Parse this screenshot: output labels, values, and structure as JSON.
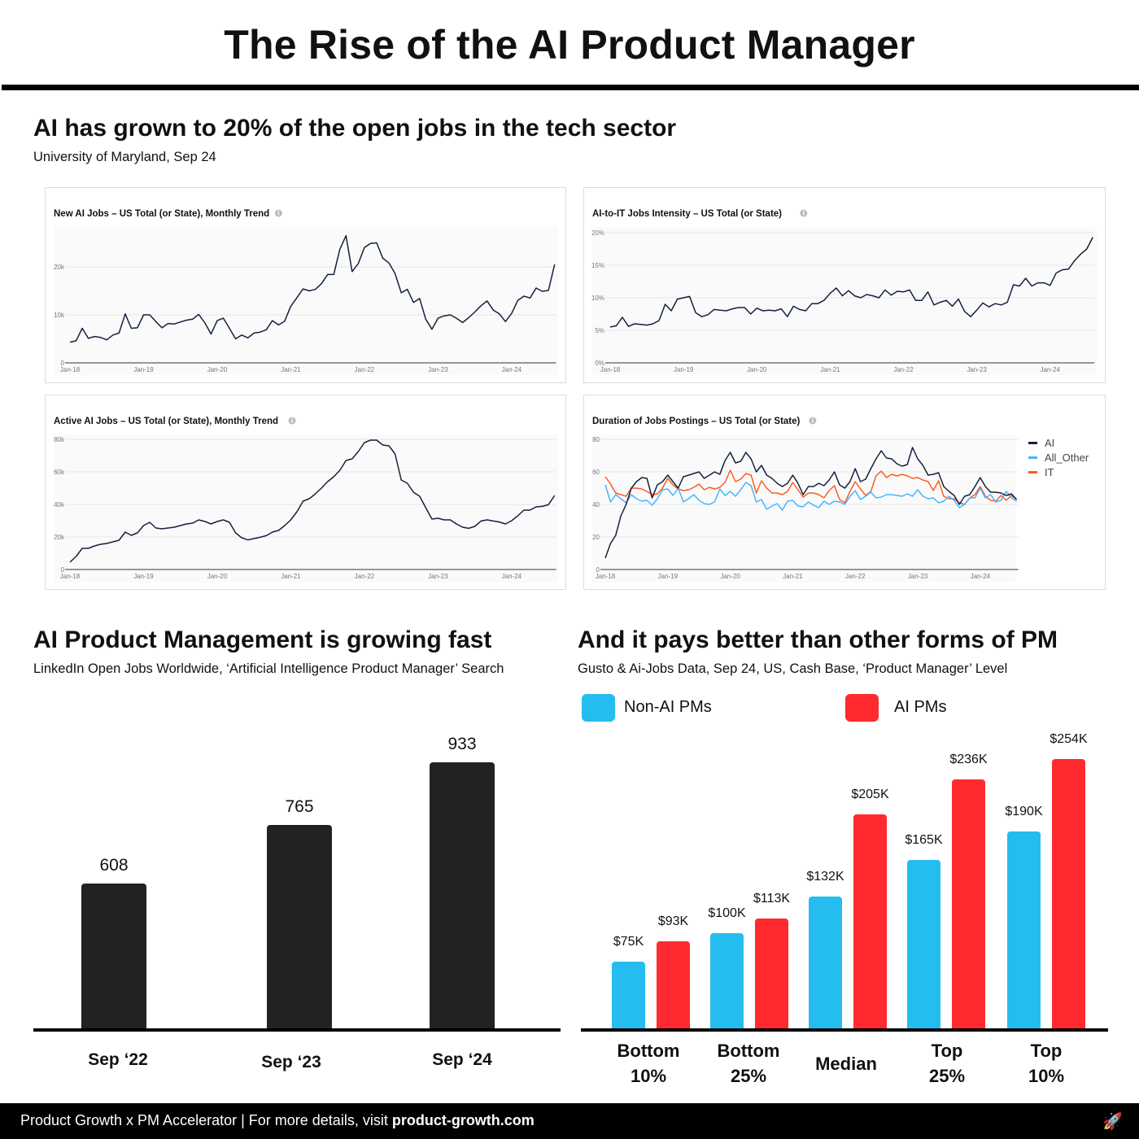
{
  "title": "The Rise of the AI Product Manager",
  "section1": {
    "heading": "AI has grown to 20% of the open jobs in the tech sector",
    "source": "University of Maryland, Sep 24"
  },
  "section2": {
    "heading": "AI Product Management is growing fast",
    "source": "LinkedIn Open Jobs Worldwide, ‘Artificial Intelligence Product Manager’ Search"
  },
  "section3": {
    "heading": "And it pays better than other forms of PM",
    "source": "Gusto & Ai-Jobs Data, Sep 24, US, Cash Base, ‘Product Manager’ Level"
  },
  "footer": {
    "text": "Product Growth x PM Accelerator  |  For more details, visit ",
    "link": "product-growth.com",
    "icon": "rocket-icon"
  },
  "colors": {
    "line": "#13213f",
    "non_ai": "#25bdf0",
    "ai": "#ff2a2f",
    "bar": "#222222",
    "all_other": "#44b6ff",
    "it": "#ff5a1f"
  },
  "chart_data": [
    {
      "type": "line",
      "title": "New AI Jobs – US Total (or State), Monthly Trend",
      "info_icon": "info-icon",
      "frequency": "monthly",
      "x_range": [
        "Jan-18",
        "Aug-24"
      ],
      "x_ticks": [
        "Jan-18",
        "Jan-19",
        "Jan-20",
        "Jan-21",
        "Jan-22",
        "Jan-23",
        "Jan-24"
      ],
      "y_ticks": [
        0,
        10000,
        20000
      ],
      "y_tick_labels": [
        "0",
        "10k",
        "20k"
      ],
      "grid": true,
      "series": [
        {
          "color": "#13213f",
          "values": [
            4300,
            4600,
            7200,
            5100,
            5500,
            5300,
            4800,
            5800,
            6200,
            10200,
            7200,
            7300,
            10000,
            10000,
            8600,
            7300,
            8200,
            8100,
            8500,
            8900,
            9100,
            10100,
            8300,
            6000,
            8800,
            9300,
            7200,
            5000,
            5800,
            5200,
            6200,
            6400,
            6900,
            8800,
            7900,
            8700,
            11800,
            13600,
            15400,
            15000,
            15300,
            16500,
            18400,
            18400,
            23700,
            26500,
            19000,
            20700,
            24000,
            24900,
            25000,
            21800,
            20800,
            18600,
            14600,
            15300,
            12600,
            13400,
            9100,
            7000,
            9300,
            9800,
            10000,
            9300,
            8400,
            9400,
            10600,
            11900,
            12900,
            11000,
            10200,
            8600,
            10300,
            13000,
            13900,
            13500,
            15600,
            14900,
            15100,
            20500
          ]
        }
      ]
    },
    {
      "type": "line",
      "title": "AI-to-IT Jobs Intensity – US Total (or State)",
      "info_icon": "info-icon",
      "frequency": "monthly",
      "x_range": [
        "Jan-18",
        "Aug-24"
      ],
      "x_ticks": [
        "Jan-18",
        "Jan-19",
        "Jan-20",
        "Jan-21",
        "Jan-22",
        "Jan-23",
        "Jan-24"
      ],
      "y_ticks": [
        0,
        5,
        10,
        15,
        20
      ],
      "y_tick_labels": [
        "0%",
        "5%",
        "10%",
        "15%",
        "20%"
      ],
      "grid": true,
      "series": [
        {
          "color": "#13213f",
          "values": [
            5.5,
            5.7,
            7.0,
            5.6,
            6.0,
            5.9,
            5.8,
            6.0,
            6.5,
            9.0,
            8.0,
            9.8,
            10.0,
            10.2,
            7.7,
            7.1,
            7.4,
            8.2,
            8.1,
            8.0,
            8.3,
            8.5,
            8.5,
            7.5,
            8.4,
            8.0,
            8.1,
            8.0,
            8.3,
            7.1,
            8.7,
            8.2,
            8.0,
            9.1,
            9.1,
            9.6,
            10.7,
            11.5,
            10.3,
            11.1,
            10.3,
            10.0,
            10.5,
            10.3,
            10.0,
            11.2,
            10.4,
            11.0,
            10.9,
            11.2,
            9.6,
            9.6,
            10.9,
            8.9,
            9.3,
            9.6,
            8.7,
            9.8,
            7.9,
            7.1,
            8.1,
            9.2,
            8.6,
            9.1,
            8.9,
            9.3,
            12.0,
            11.8,
            13.0,
            11.8,
            12.3,
            12.3,
            11.9,
            13.8,
            14.3,
            14.4,
            15.7,
            16.7,
            17.5,
            19.3
          ]
        }
      ]
    },
    {
      "type": "line",
      "title": "Active AI Jobs – US Total (or State), Monthly Trend",
      "info_icon": "info-icon",
      "frequency": "monthly",
      "x_range": [
        "Jan-18",
        "Aug-24"
      ],
      "x_ticks": [
        "Jan-18",
        "Jan-19",
        "Jan-20",
        "Jan-21",
        "Jan-22",
        "Jan-23",
        "Jan-24"
      ],
      "y_ticks": [
        0,
        20000,
        40000,
        60000,
        80000
      ],
      "y_tick_labels": [
        "0",
        "20k",
        "40k",
        "60k",
        "80k"
      ],
      "grid": true,
      "series": [
        {
          "color": "#13213f",
          "values": [
            4500,
            8000,
            13000,
            13000,
            14500,
            15500,
            16000,
            17000,
            18000,
            23000,
            21000,
            22500,
            27000,
            29000,
            25500,
            25000,
            25500,
            26000,
            27000,
            28000,
            28500,
            30500,
            29500,
            28000,
            29500,
            30500,
            29000,
            22500,
            19500,
            18200,
            19000,
            19800,
            20800,
            23000,
            24000,
            27000,
            30500,
            35500,
            42000,
            43500,
            46500,
            50000,
            54000,
            57000,
            61000,
            67000,
            68000,
            72500,
            78000,
            79500,
            79500,
            76500,
            76000,
            71000,
            55000,
            53000,
            47500,
            45000,
            38000,
            31000,
            31500,
            30500,
            30500,
            28000,
            26000,
            25300,
            26500,
            29800,
            30500,
            29800,
            29200,
            28000,
            30000,
            33000,
            36500,
            36500,
            38500,
            38800,
            39800,
            45500
          ]
        }
      ]
    },
    {
      "type": "line",
      "title": "Duration of Jobs Postings – US Total (or State)",
      "info_icon": "info-icon",
      "frequency": "monthly",
      "x_range": [
        "Jan-18",
        "Aug-24"
      ],
      "x_ticks": [
        "Jan-18",
        "Jan-19",
        "Jan-20",
        "Jan-21",
        "Jan-22",
        "Jan-23",
        "Jan-24"
      ],
      "y_ticks": [
        0,
        20,
        40,
        60,
        80
      ],
      "y_tick_labels": [
        "0",
        "20",
        "40",
        "60",
        "80"
      ],
      "grid": true,
      "legend": "right",
      "series": [
        {
          "name": "AI",
          "color": "#13213f",
          "values": [
            7,
            16,
            21,
            33,
            40,
            50,
            54,
            56.5,
            56,
            44,
            52,
            54,
            58,
            54,
            50,
            57,
            58,
            59,
            60,
            56,
            58,
            60,
            58.5,
            67,
            72,
            65.5,
            66.5,
            72,
            68,
            60,
            64,
            58,
            56,
            53,
            51,
            53,
            58,
            53,
            46,
            51,
            51,
            53,
            51.5,
            55,
            60,
            52,
            50,
            54,
            62,
            54,
            55.5,
            62,
            68,
            73,
            68.5,
            68,
            65,
            63.5,
            64.5,
            75,
            68,
            64,
            58,
            58.5,
            59.5,
            51,
            48,
            45.5,
            40,
            45,
            46,
            51,
            56.5,
            51,
            47.5,
            47.5,
            47,
            45.5,
            46.5,
            43
          ]
        },
        {
          "name": "All_Other",
          "color": "#44b6ff",
          "values": [
            52,
            41.5,
            46,
            43.5,
            41,
            46,
            43.5,
            42,
            42.5,
            39.5,
            43.5,
            49,
            49.5,
            45.5,
            50,
            41.5,
            43.5,
            46,
            42.5,
            40.5,
            40,
            41.5,
            49.5,
            45.5,
            48,
            45,
            49,
            53.5,
            51.5,
            41.5,
            43,
            37,
            39,
            40.5,
            36.5,
            42,
            42.5,
            39,
            38.5,
            41.5,
            39.5,
            38,
            42,
            40,
            42,
            41.5,
            40,
            45,
            48.5,
            43,
            45,
            47.5,
            44,
            44.5,
            46,
            46,
            45.5,
            45,
            46.5,
            45,
            49,
            45,
            43.5,
            44,
            41,
            42,
            45,
            42.5,
            38,
            40,
            44,
            44,
            50,
            44,
            46,
            41.5,
            42.5,
            48,
            44,
            42
          ]
        },
        {
          "name": "IT",
          "color": "#ff5a1f",
          "values": [
            57,
            52.5,
            47,
            46,
            45,
            50,
            50,
            49.5,
            48,
            46,
            46.5,
            50,
            56,
            52,
            49.5,
            48.5,
            49,
            50.5,
            52.5,
            49,
            50.5,
            49.5,
            50.5,
            53.5,
            61,
            54,
            55.5,
            59,
            58,
            47,
            54.5,
            50,
            47,
            47,
            46,
            48,
            53.5,
            49,
            44.5,
            47,
            47,
            46,
            44,
            48.5,
            51.5,
            43,
            41,
            48,
            54,
            49.5,
            45.5,
            48,
            57.5,
            60.5,
            56.5,
            58.5,
            57.5,
            58.5,
            57.5,
            56,
            56.5,
            55,
            54,
            48.5,
            54.5,
            45,
            43.5,
            43.5,
            41,
            40,
            44,
            46,
            51,
            45,
            42.5,
            42,
            45.5,
            42.5,
            45.5,
            43
          ]
        }
      ]
    },
    {
      "type": "bar",
      "categories": [
        "Sep ‘22",
        "Sep ‘23",
        "Sep ‘24"
      ],
      "values": [
        608,
        765,
        933
      ],
      "value_labels": [
        "608",
        "765",
        "933"
      ],
      "color": "#222222"
    },
    {
      "type": "bar",
      "categories": [
        "Bottom 10%",
        "Bottom 25%",
        "Median",
        "Top 25%",
        "Top 10%"
      ],
      "legend": "top",
      "series": [
        {
          "name": "Non-AI PMs",
          "color": "#25bdf0",
          "values": [
            75,
            100,
            132,
            165,
            190
          ],
          "value_labels": [
            "$75K",
            "$100K",
            "$132K",
            "$165K",
            "$190K"
          ]
        },
        {
          "name": "AI PMs",
          "color": "#ff2a2f",
          "values": [
            93,
            113,
            205,
            236,
            254
          ],
          "value_labels": [
            "$93K",
            "$113K",
            "$205K",
            "$236K",
            "$254K"
          ]
        }
      ]
    }
  ]
}
